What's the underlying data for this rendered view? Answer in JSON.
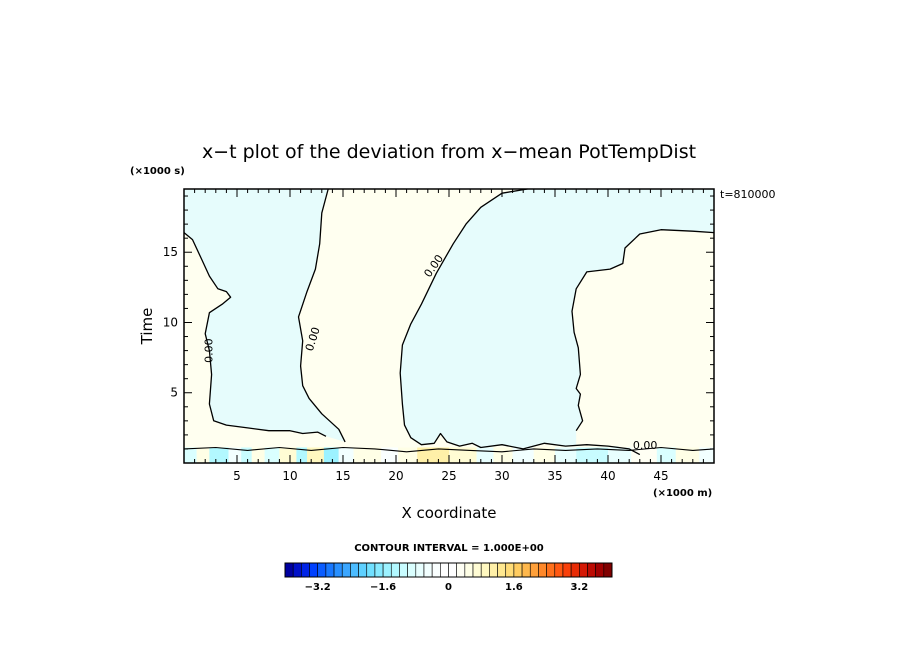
{
  "chart_data": {
    "type": "heatmap",
    "title": "x−t plot of the deviation from x−mean PotTempDist",
    "xlabel": "X coordinate",
    "ylabel": "Time",
    "x_unit": "(×1000 m)",
    "y_unit": "(×1000 s)",
    "time_stamp": "t=810000",
    "xlim": [
      0,
      50
    ],
    "ylim": [
      0,
      19.5
    ],
    "x_ticks": [
      5,
      10,
      15,
      20,
      25,
      30,
      35,
      40,
      45
    ],
    "y_ticks": [
      5,
      10,
      15
    ],
    "x_tick_labels": [
      "5",
      "10",
      "15",
      "20",
      "25",
      "30",
      "35",
      "40",
      "45"
    ],
    "y_tick_labels": [
      "5",
      "10",
      "15"
    ],
    "contour_label": "0.00",
    "contour_interval_text": "CONTOUR INTERVAL = 1.000E+00",
    "colorbar": {
      "range": [
        -4,
        4
      ],
      "step": 0.2,
      "tick_values": [
        -3.2,
        -1.6,
        0,
        1.6,
        3.2
      ],
      "tick_labels": [
        "−3.2",
        "−1.6",
        "0",
        "1.6",
        "3.2"
      ],
      "colors": [
        "#0000a0",
        "#0010c8",
        "#0024e6",
        "#0040ff",
        "#0a5cff",
        "#1878ff",
        "#2890ff",
        "#3aa6ff",
        "#4cbcff",
        "#5ed0ff",
        "#70e0ff",
        "#86eaff",
        "#9cf2ff",
        "#b2f8ff",
        "#c8fcff",
        "#daffff",
        "#e8ffff",
        "#f2ffff",
        "#faffff",
        "#ffffff",
        "#ffffff",
        "#fffff4",
        "#ffffe6",
        "#fffcd4",
        "#fff8c0",
        "#fff0a8",
        "#ffe890",
        "#ffdc78",
        "#ffcc60",
        "#ffb84c",
        "#ffa03a",
        "#ff882a",
        "#ff701c",
        "#ff5812",
        "#f8400a",
        "#e82c06",
        "#d41804",
        "#bc0a02",
        "#a00000",
        "#800000"
      ]
    },
    "regions": [
      {
        "name": "negative deviation (light blue)",
        "value": -0.5,
        "color": "#e6fcfc"
      },
      {
        "name": "positive deviation (light yellow)",
        "value": 0.3,
        "color": "#fffff0"
      }
    ],
    "contours_zero": [
      [
        [
          0.0,
          16.4
        ],
        [
          0.8,
          15.9
        ],
        [
          1.6,
          14.6
        ],
        [
          2.4,
          13.3
        ],
        [
          3.2,
          12.4
        ],
        [
          4.0,
          12.2
        ],
        [
          4.4,
          11.8
        ],
        [
          3.6,
          11.3
        ],
        [
          2.4,
          10.7
        ],
        [
          2.0,
          9.2
        ],
        [
          2.4,
          8.0
        ],
        [
          2.6,
          6.3
        ],
        [
          2.4,
          4.2
        ],
        [
          2.8,
          3.0
        ],
        [
          4.0,
          2.7
        ],
        [
          6.0,
          2.5
        ],
        [
          8.0,
          2.3
        ],
        [
          10.0,
          2.3
        ],
        [
          11.2,
          2.1
        ],
        [
          12.6,
          2.2
        ],
        [
          13.4,
          1.9
        ]
      ],
      [
        [
          13.6,
          19.5
        ],
        [
          13.0,
          17.8
        ],
        [
          12.8,
          15.6
        ],
        [
          12.4,
          13.8
        ],
        [
          11.6,
          12.2
        ],
        [
          10.8,
          10.4
        ],
        [
          11.2,
          8.7
        ],
        [
          11.0,
          6.9
        ],
        [
          11.2,
          5.5
        ],
        [
          11.8,
          4.6
        ],
        [
          13.0,
          3.5
        ],
        [
          14.6,
          2.4
        ],
        [
          15.2,
          1.5
        ]
      ],
      [
        [
          32.4,
          19.5
        ],
        [
          30.0,
          19.2
        ],
        [
          28.0,
          18.2
        ],
        [
          26.6,
          17.0
        ],
        [
          25.4,
          15.6
        ],
        [
          23.8,
          13.5
        ],
        [
          22.4,
          11.3
        ],
        [
          21.4,
          9.9
        ],
        [
          20.6,
          8.4
        ],
        [
          20.4,
          6.4
        ],
        [
          20.6,
          4.2
        ],
        [
          20.8,
          2.7
        ],
        [
          21.4,
          1.8
        ],
        [
          22.4,
          1.3
        ],
        [
          23.6,
          1.4
        ],
        [
          24.2,
          2.1
        ],
        [
          24.8,
          1.5
        ],
        [
          26.0,
          1.2
        ],
        [
          27.2,
          1.4
        ],
        [
          28.0,
          1.1
        ],
        [
          30.0,
          1.3
        ],
        [
          32.0,
          1.0
        ],
        [
          34.0,
          1.4
        ],
        [
          36.0,
          1.2
        ],
        [
          38.0,
          1.3
        ],
        [
          40.0,
          1.2
        ],
        [
          42.0,
          1.0
        ],
        [
          43.0,
          0.6
        ]
      ],
      [
        [
          50.0,
          16.4
        ],
        [
          48.0,
          16.5
        ],
        [
          45.0,
          16.6
        ],
        [
          43.0,
          16.3
        ],
        [
          41.6,
          15.3
        ],
        [
          41.4,
          14.2
        ],
        [
          40.2,
          13.8
        ],
        [
          38.0,
          13.6
        ],
        [
          37.0,
          12.4
        ],
        [
          36.6,
          10.8
        ],
        [
          36.8,
          9.3
        ],
        [
          37.2,
          8.2
        ],
        [
          37.4,
          6.3
        ],
        [
          37.0,
          5.3
        ],
        [
          37.4,
          4.9
        ],
        [
          37.2,
          4.1
        ],
        [
          37.6,
          3.0
        ],
        [
          37.0,
          2.3
        ]
      ]
    ],
    "surface_bands": [
      {
        "x0": 0.0,
        "x1": 1.2,
        "value": -1.0
      },
      {
        "x0": 1.2,
        "x1": 2.4,
        "value": 0.5
      },
      {
        "x0": 2.4,
        "x1": 4.2,
        "value": -1.4
      },
      {
        "x0": 4.2,
        "x1": 5.4,
        "value": -0.6
      },
      {
        "x0": 5.4,
        "x1": 6.4,
        "value": -1.1
      },
      {
        "x0": 6.4,
        "x1": 7.6,
        "value": 0.4
      },
      {
        "x0": 7.6,
        "x1": 9.0,
        "value": -0.9
      },
      {
        "x0": 9.0,
        "x1": 10.6,
        "value": 0.7
      },
      {
        "x0": 10.6,
        "x1": 11.6,
        "value": -1.3
      },
      {
        "x0": 11.6,
        "x1": 13.2,
        "value": 0.9
      },
      {
        "x0": 13.2,
        "x1": 14.6,
        "value": -1.5
      },
      {
        "x0": 14.6,
        "x1": 16.0,
        "value": -0.5
      },
      {
        "x0": 16.0,
        "x1": 18.6,
        "value": 0.5
      },
      {
        "x0": 18.6,
        "x1": 20.2,
        "value": -0.4
      },
      {
        "x0": 20.2,
        "x1": 22.0,
        "value": 0.6
      },
      {
        "x0": 22.0,
        "x1": 25.0,
        "value": 1.1
      },
      {
        "x0": 25.0,
        "x1": 27.6,
        "value": 0.8
      },
      {
        "x0": 27.6,
        "x1": 29.2,
        "value": -0.7
      },
      {
        "x0": 29.2,
        "x1": 31.0,
        "value": 0.5
      },
      {
        "x0": 31.0,
        "x1": 33.0,
        "value": -0.5
      },
      {
        "x0": 33.0,
        "x1": 35.0,
        "value": 0.4
      },
      {
        "x0": 35.0,
        "x1": 37.0,
        "value": -0.7
      },
      {
        "x0": 37.0,
        "x1": 40.0,
        "value": -1.1
      },
      {
        "x0": 40.0,
        "x1": 42.2,
        "value": -0.8
      },
      {
        "x0": 42.2,
        "x1": 44.6,
        "value": 0.3
      },
      {
        "x0": 44.6,
        "x1": 46.4,
        "value": -0.9
      },
      {
        "x0": 46.4,
        "x1": 48.6,
        "value": 0.4
      },
      {
        "x0": 48.6,
        "x1": 50.0,
        "value": -0.6
      }
    ]
  }
}
